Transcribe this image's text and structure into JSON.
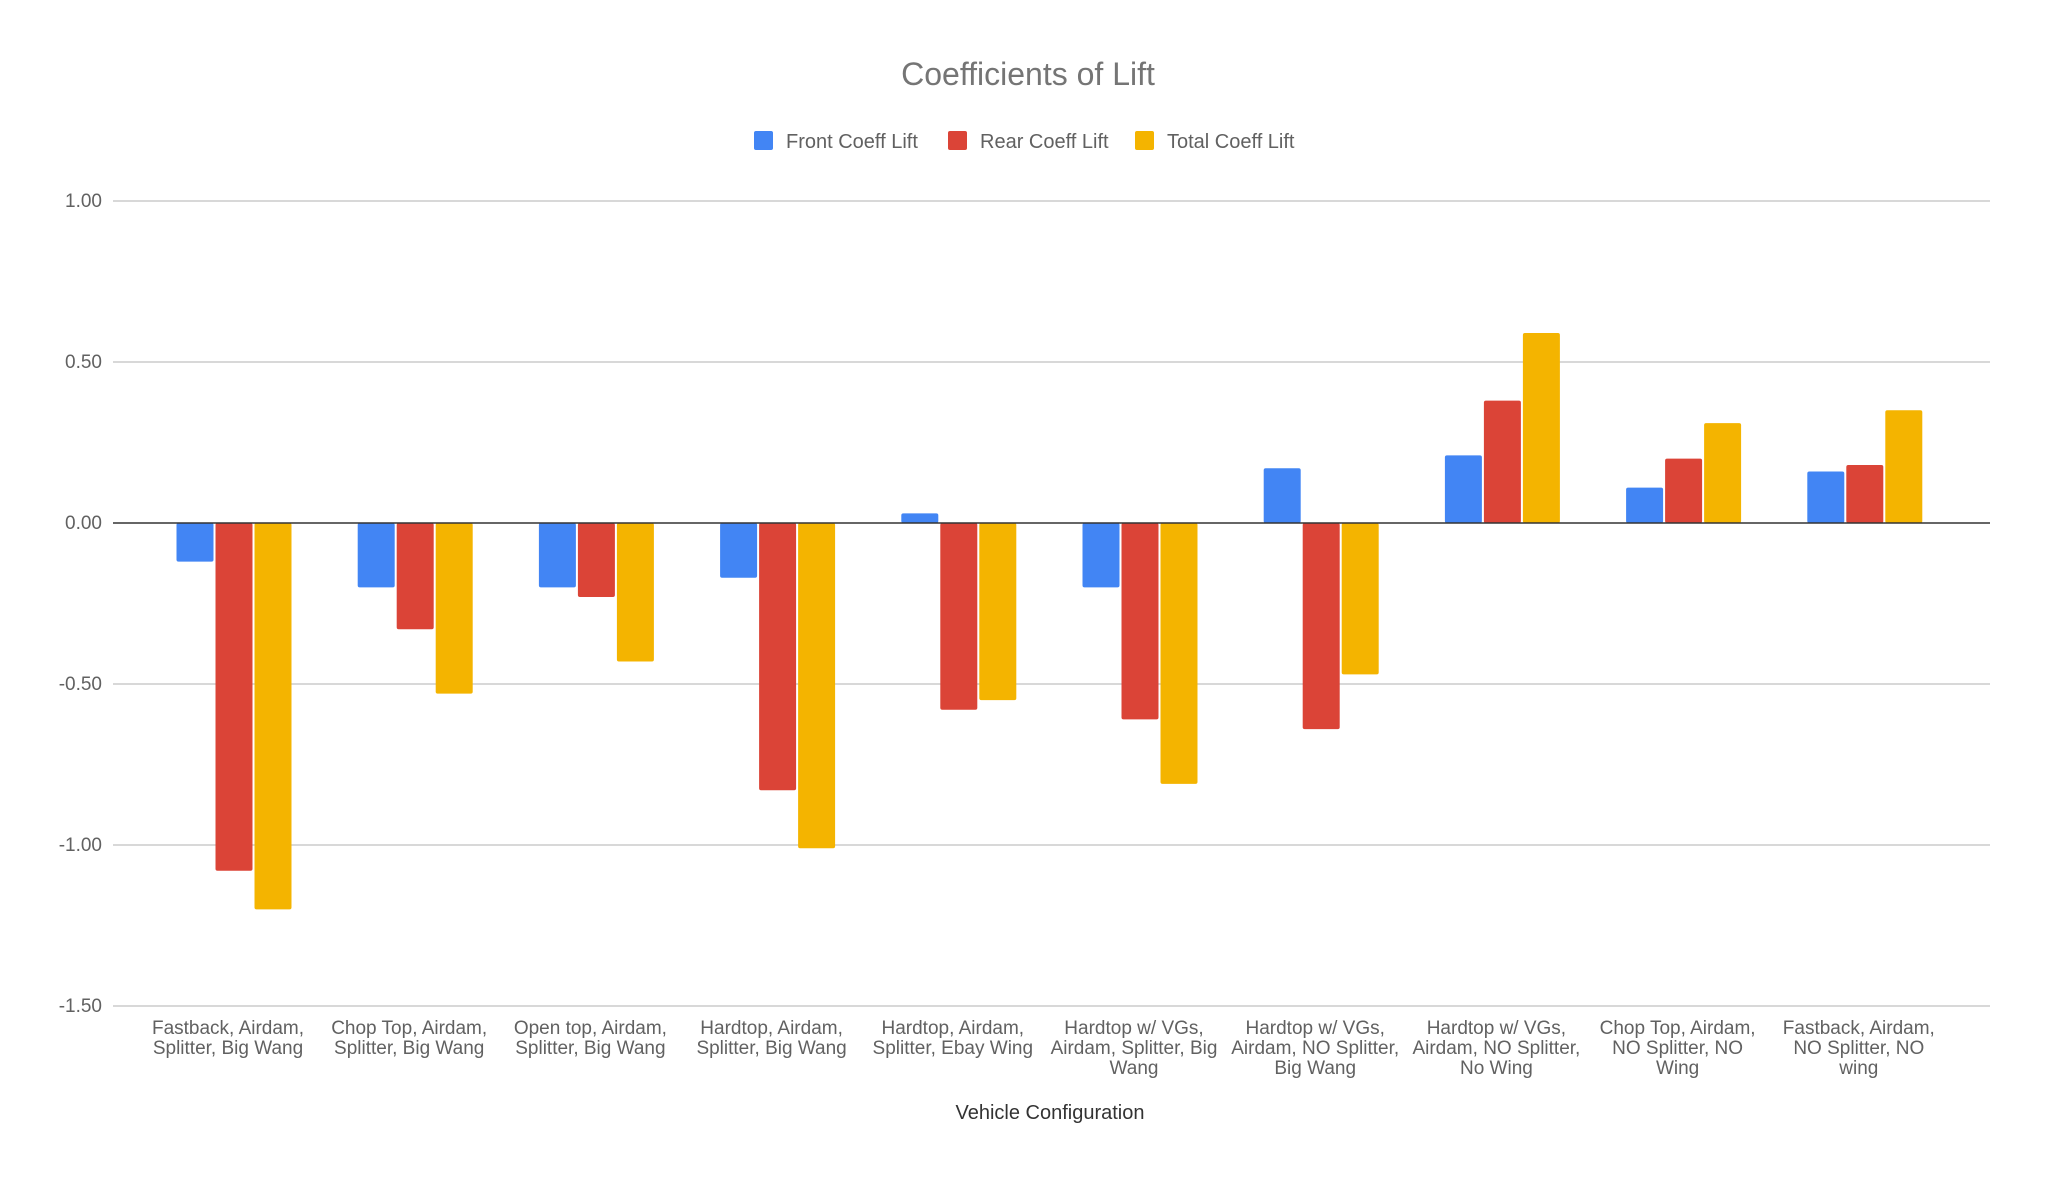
{
  "chart_data": {
    "type": "bar",
    "title": "Coefficients of Lift",
    "xlabel": "Vehicle Configuration",
    "ylabel": "",
    "ylim": [
      -1.5,
      1.0
    ],
    "yticks": [
      1.0,
      0.5,
      0.0,
      -0.5,
      -1.0,
      -1.5
    ],
    "ytick_labels": [
      "1.00",
      "0.50",
      "0.00",
      "-0.50",
      "-1.00",
      "-1.50"
    ],
    "grid": true,
    "legend_position": "top",
    "categories": [
      [
        "Fastback, Airdam,",
        "Splitter, Big Wang"
      ],
      [
        "Chop Top, Airdam,",
        "Splitter, Big Wang"
      ],
      [
        "Open top, Airdam,",
        "Splitter, Big Wang"
      ],
      [
        "Hardtop, Airdam,",
        "Splitter, Big Wang"
      ],
      [
        "Hardtop, Airdam,",
        "Splitter, Ebay Wing"
      ],
      [
        "Hardtop w/ VGs,",
        "Airdam, Splitter, Big",
        "Wang"
      ],
      [
        "Hardtop w/ VGs,",
        "Airdam, NO Splitter,",
        "Big Wang"
      ],
      [
        "Hardtop w/ VGs,",
        "Airdam, NO Splitter,",
        "No Wing"
      ],
      [
        "Chop Top, Airdam,",
        "NO Splitter, NO",
        "Wing"
      ],
      [
        "Fastback, Airdam,",
        "NO Splitter, NO",
        "wing"
      ]
    ],
    "series": [
      {
        "name": "Front Coeff Lift",
        "color": "#4285F4",
        "values": [
          -0.12,
          -0.2,
          -0.2,
          -0.17,
          0.03,
          -0.2,
          0.17,
          0.21,
          0.11,
          0.16
        ]
      },
      {
        "name": "Rear Coeff Lift",
        "color": "#DB4437",
        "values": [
          -1.08,
          -0.33,
          -0.23,
          -0.83,
          -0.58,
          -0.61,
          -0.64,
          0.38,
          0.2,
          0.18
        ]
      },
      {
        "name": "Total Coeff Lift",
        "color": "#F4B400",
        "values": [
          -1.2,
          -0.53,
          -0.43,
          -1.01,
          -0.55,
          -0.81,
          -0.47,
          0.59,
          0.31,
          0.35
        ]
      }
    ]
  }
}
